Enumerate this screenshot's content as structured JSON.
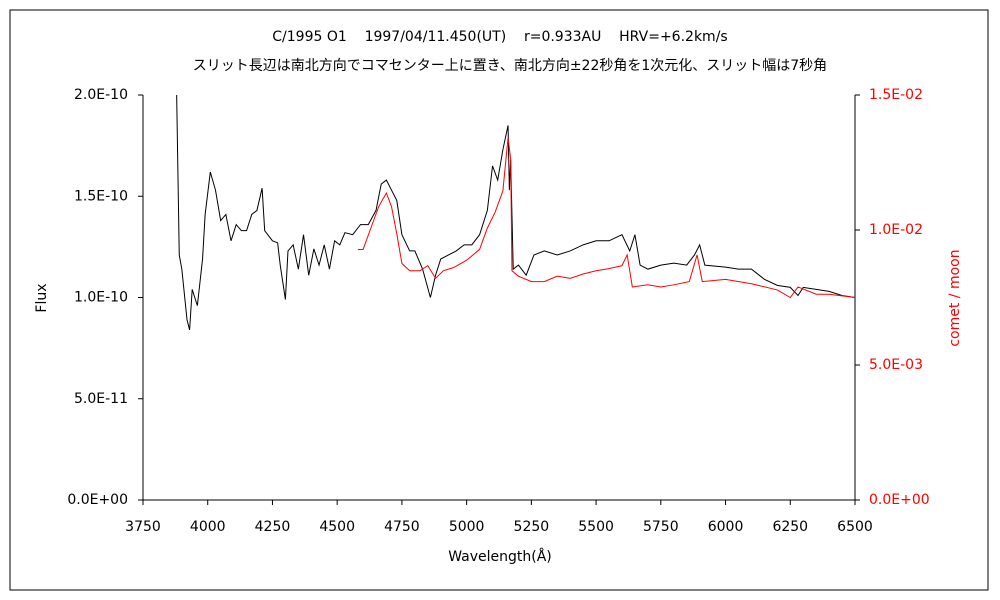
{
  "chart_data": {
    "type": "line",
    "title": "C/1995 O1    1997/04/11.450(UT)    r=0.933AU    HRV=+6.2km/s",
    "subtitle": "スリット長辺は南北方向でコマセンター上に置き、南北方向±22秒角を1次元化、スリット幅は7秒角",
    "xlabel": "Wavelength(Å)",
    "ylabel": "Flux",
    "y2label": "comet / moon",
    "xlim": [
      3750,
      6500
    ],
    "xticks": [
      3750,
      4000,
      4250,
      4500,
      4750,
      5000,
      5250,
      5500,
      5750,
      6000,
      6250,
      6500
    ],
    "ylim": [
      0,
      2e-10
    ],
    "yticks": [
      {
        "value": 0,
        "label": "0.0E+00"
      },
      {
        "value": 5e-11,
        "label": "5.0E-11"
      },
      {
        "value": 1e-10,
        "label": "1.0E-10"
      },
      {
        "value": 1.5e-10,
        "label": "1.5E-10"
      },
      {
        "value": 2e-10,
        "label": "2.0E-10"
      }
    ],
    "y2lim": [
      0,
      0.015
    ],
    "y2ticks": [
      {
        "value": 0,
        "label": "0.0E+00"
      },
      {
        "value": 0.005,
        "label": "5.0E-03"
      },
      {
        "value": 0.01,
        "label": "1.0E-02"
      },
      {
        "value": 0.015,
        "label": "1.5E-02"
      }
    ],
    "y2color": "#ff0000",
    "grid": false,
    "series": [
      {
        "color": "#000000",
        "axis": "y",
        "x": [
          3880,
          3890,
          3900,
          3920,
          3930,
          3940,
          3960,
          3980,
          3990,
          4010,
          4030,
          4050,
          4070,
          4090,
          4110,
          4130,
          4150,
          4170,
          4190,
          4210,
          4220,
          4250,
          4270,
          4280,
          4300,
          4310,
          4330,
          4350,
          4370,
          4390,
          4410,
          4430,
          4450,
          4470,
          4490,
          4510,
          4530,
          4560,
          4590,
          4620,
          4650,
          4670,
          4690,
          4710,
          4730,
          4750,
          4780,
          4800,
          4830,
          4860,
          4880,
          4900,
          4930,
          4960,
          4990,
          5020,
          5050,
          5080,
          5100,
          5120,
          5140,
          5160,
          5165,
          5170,
          5180,
          5200,
          5230,
          5260,
          5300,
          5350,
          5400,
          5450,
          5500,
          5550,
          5600,
          5630,
          5650,
          5670,
          5700,
          5750,
          5800,
          5850,
          5880,
          5900,
          5920,
          6000,
          6050,
          6100,
          6150,
          6200,
          6250,
          6280,
          6300,
          6350,
          6400,
          6450,
          6500
        ],
        "values": [
          2e-10,
          1.21e-10,
          1.14e-10,
          8.9e-11,
          8.4e-11,
          1.04e-10,
          9.6e-11,
          1.19e-10,
          1.41e-10,
          1.62e-10,
          1.53e-10,
          1.38e-10,
          1.41e-10,
          1.28e-10,
          1.36e-10,
          1.33e-10,
          1.33e-10,
          1.41e-10,
          1.43e-10,
          1.54e-10,
          1.33e-10,
          1.28e-10,
          1.27e-10,
          1.16e-10,
          9.9e-11,
          1.23e-10,
          1.26e-10,
          1.14e-10,
          1.31e-10,
          1.11e-10,
          1.24e-10,
          1.16e-10,
          1.26e-10,
          1.14e-10,
          1.28e-10,
          1.26e-10,
          1.32e-10,
          1.31e-10,
          1.36e-10,
          1.36e-10,
          1.43e-10,
          1.56e-10,
          1.58e-10,
          1.53e-10,
          1.48e-10,
          1.31e-10,
          1.23e-10,
          1.23e-10,
          1.14e-10,
          1e-10,
          1.11e-10,
          1.19e-10,
          1.21e-10,
          1.23e-10,
          1.26e-10,
          1.26e-10,
          1.31e-10,
          1.43e-10,
          1.65e-10,
          1.58e-10,
          1.73e-10,
          1.85e-10,
          1.53e-10,
          1.68e-10,
          1.14e-10,
          1.16e-10,
          1.11e-10,
          1.21e-10,
          1.23e-10,
          1.21e-10,
          1.23e-10,
          1.26e-10,
          1.28e-10,
          1.28e-10,
          1.31e-10,
          1.23e-10,
          1.31e-10,
          1.16e-10,
          1.14e-10,
          1.16e-10,
          1.17e-10,
          1.16e-10,
          1.21e-10,
          1.26e-10,
          1.16e-10,
          1.15e-10,
          1.14e-10,
          1.14e-10,
          1.09e-10,
          1.06e-10,
          1.05e-10,
          1.01e-10,
          1.05e-10,
          1.04e-10,
          1.03e-10,
          1.01e-10,
          1e-10
        ]
      },
      {
        "color": "#ff0000",
        "axis": "y2",
        "x": [
          4580,
          4600,
          4630,
          4660,
          4690,
          4710,
          4730,
          4750,
          4780,
          4820,
          4850,
          4880,
          4910,
          4950,
          5000,
          5050,
          5080,
          5110,
          5140,
          5160,
          5170,
          5175,
          5200,
          5250,
          5300,
          5350,
          5400,
          5450,
          5500,
          5550,
          5600,
          5620,
          5640,
          5700,
          5750,
          5800,
          5860,
          5890,
          5910,
          6000,
          6100,
          6200,
          6250,
          6280,
          6350,
          6400,
          6500
        ],
        "values": [
          0.00928,
          0.00928,
          0.01007,
          0.01086,
          0.01137,
          0.01086,
          0.00987,
          0.00876,
          0.00849,
          0.00849,
          0.00868,
          0.00821,
          0.00849,
          0.00861,
          0.00888,
          0.00928,
          0.01007,
          0.01066,
          0.01145,
          0.01342,
          0.01263,
          0.00849,
          0.00829,
          0.00809,
          0.00809,
          0.00829,
          0.00821,
          0.00837,
          0.00849,
          0.00857,
          0.00868,
          0.00908,
          0.00789,
          0.00797,
          0.00789,
          0.00797,
          0.00809,
          0.00908,
          0.00809,
          0.00817,
          0.00801,
          0.00778,
          0.0075,
          0.00789,
          0.00762,
          0.00762,
          0.0075
        ]
      }
    ]
  }
}
